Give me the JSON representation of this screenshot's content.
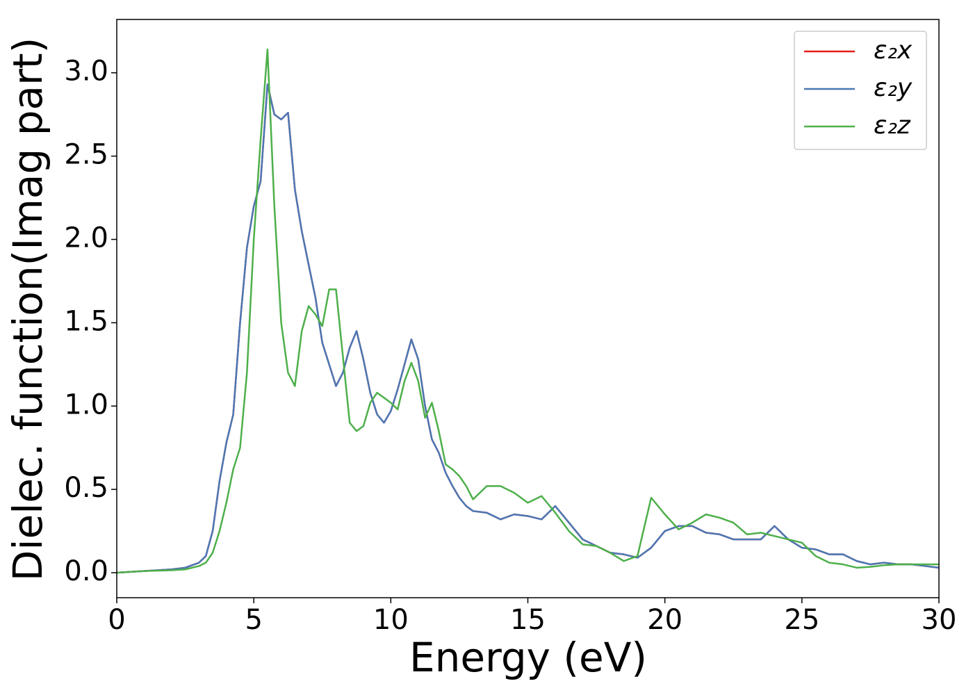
{
  "chart_data": {
    "type": "line",
    "xlabel": "Energy (eV)",
    "ylabel": "Dielec. function(Imag part)",
    "x": [
      0,
      1,
      2,
      2.5,
      3,
      3.25,
      3.5,
      3.75,
      4,
      4.25,
      4.5,
      4.75,
      5,
      5.25,
      5.5,
      5.75,
      6,
      6.25,
      6.5,
      6.75,
      7,
      7.25,
      7.5,
      7.75,
      8,
      8.25,
      8.5,
      8.75,
      9,
      9.25,
      9.5,
      9.75,
      10,
      10.25,
      10.5,
      10.75,
      11,
      11.25,
      11.5,
      11.75,
      12,
      12.25,
      12.5,
      12.75,
      13,
      13.5,
      14,
      14.5,
      15,
      15.5,
      16,
      16.5,
      17,
      17.5,
      18,
      18.5,
      19,
      19.5,
      20,
      20.5,
      21,
      21.5,
      22,
      22.5,
      23,
      23.5,
      24,
      24.5,
      25,
      25.5,
      26,
      26.5,
      27,
      27.5,
      28,
      28.5,
      29,
      29.5,
      30
    ],
    "series": [
      {
        "name": "ε₂x",
        "color": "#e41a1c",
        "values": [
          0,
          0.01,
          0.02,
          0.03,
          0.06,
          0.1,
          0.25,
          0.55,
          0.78,
          0.95,
          1.5,
          1.95,
          2.2,
          2.35,
          2.93,
          2.75,
          2.72,
          2.76,
          2.3,
          2.05,
          1.85,
          1.65,
          1.38,
          1.25,
          1.12,
          1.2,
          1.35,
          1.45,
          1.28,
          1.08,
          0.95,
          0.9,
          0.97,
          1.1,
          1.25,
          1.4,
          1.28,
          1.0,
          0.8,
          0.72,
          0.6,
          0.52,
          0.45,
          0.4,
          0.37,
          0.36,
          0.32,
          0.35,
          0.34,
          0.32,
          0.4,
          0.3,
          0.2,
          0.16,
          0.12,
          0.11,
          0.09,
          0.15,
          0.25,
          0.28,
          0.28,
          0.24,
          0.23,
          0.2,
          0.2,
          0.2,
          0.28,
          0.2,
          0.15,
          0.14,
          0.11,
          0.11,
          0.07,
          0.05,
          0.06,
          0.05,
          0.05,
          0.04,
          0.03
        ]
      },
      {
        "name": "ε₂y",
        "color": "#4a78b5",
        "values": [
          0,
          0.01,
          0.02,
          0.03,
          0.06,
          0.1,
          0.25,
          0.55,
          0.78,
          0.95,
          1.5,
          1.95,
          2.2,
          2.35,
          2.93,
          2.75,
          2.72,
          2.76,
          2.3,
          2.05,
          1.85,
          1.65,
          1.38,
          1.25,
          1.12,
          1.2,
          1.35,
          1.45,
          1.28,
          1.08,
          0.95,
          0.9,
          0.97,
          1.1,
          1.25,
          1.4,
          1.28,
          1.0,
          0.8,
          0.72,
          0.6,
          0.52,
          0.45,
          0.4,
          0.37,
          0.36,
          0.32,
          0.35,
          0.34,
          0.32,
          0.4,
          0.3,
          0.2,
          0.16,
          0.12,
          0.11,
          0.09,
          0.15,
          0.25,
          0.28,
          0.28,
          0.24,
          0.23,
          0.2,
          0.2,
          0.2,
          0.28,
          0.2,
          0.15,
          0.14,
          0.11,
          0.11,
          0.07,
          0.05,
          0.06,
          0.05,
          0.05,
          0.04,
          0.03
        ]
      },
      {
        "name": "ε₂z",
        "color": "#4daf4a",
        "values": [
          0,
          0.01,
          0.015,
          0.02,
          0.04,
          0.06,
          0.12,
          0.25,
          0.42,
          0.62,
          0.75,
          1.2,
          2.0,
          2.6,
          3.14,
          2.2,
          1.5,
          1.2,
          1.12,
          1.45,
          1.6,
          1.55,
          1.48,
          1.7,
          1.7,
          1.3,
          0.9,
          0.85,
          0.88,
          1.02,
          1.08,
          1.05,
          1.02,
          0.98,
          1.15,
          1.26,
          1.15,
          0.93,
          1.02,
          0.85,
          0.65,
          0.62,
          0.58,
          0.52,
          0.44,
          0.52,
          0.52,
          0.48,
          0.42,
          0.46,
          0.36,
          0.25,
          0.17,
          0.16,
          0.12,
          0.07,
          0.1,
          0.45,
          0.35,
          0.26,
          0.3,
          0.35,
          0.33,
          0.3,
          0.23,
          0.24,
          0.22,
          0.2,
          0.18,
          0.1,
          0.06,
          0.05,
          0.03,
          0.035,
          0.045,
          0.05,
          0.05,
          0.05,
          0.05
        ]
      }
    ],
    "xlim": [
      0,
      30
    ],
    "xticks": [
      0,
      5,
      10,
      15,
      20,
      25,
      30
    ],
    "ylim": [
      -0.15,
      3.32
    ],
    "yticks": [
      {
        "value": 0,
        "label": "0.0"
      },
      0.5,
      {
        "value": 1,
        "label": "1.0"
      },
      1.5,
      {
        "value": 2,
        "label": "2.0"
      },
      2.5,
      {
        "value": 3,
        "label": "3.0"
      }
    ],
    "legend": "upper right"
  }
}
